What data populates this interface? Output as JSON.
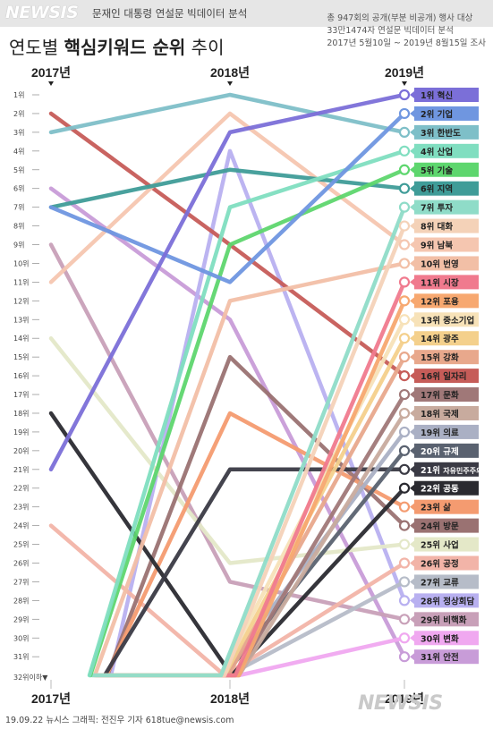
{
  "header": {
    "logo": "NEWSIS",
    "subtitle": "문재인 대통령 연설문 빅데이터 분석"
  },
  "title": {
    "prefix": "연도별 ",
    "bold": "핵심키워드 순위",
    "suffix": " 추이"
  },
  "notes": [
    "총 947회의 공개(부분 비공개) 행사 대상",
    "33만1474자 연설문 빅데이터 분석",
    "2017년 5월10일 ~ 2019년 8월15일 조사"
  ],
  "footer": "19.09.22 뉴시스 그래픽: 전진우 기자 618tue@newsis.com",
  "watermark": "NEWSIS",
  "chart_data": {
    "type": "line",
    "x": [
      "2017년",
      "2018년",
      "2019년"
    ],
    "y_ticks": [
      "1위",
      "2위",
      "3위",
      "4위",
      "5위",
      "6위",
      "7위",
      "8위",
      "9위",
      "10위",
      "11위",
      "12위",
      "13위",
      "14위",
      "15위",
      "16위",
      "17위",
      "18위",
      "19위",
      "20위",
      "21위",
      "22위",
      "23위",
      "24위",
      "25위",
      "26위",
      "27위",
      "28위",
      "29위",
      "30위",
      "31위",
      "32위이하▼"
    ],
    "y_note": "rank 32 = below 32nd (off chart)",
    "series": [
      {
        "name": "혁신",
        "color": "#7b6fd8",
        "ranks": [
          21,
          3,
          1
        ]
      },
      {
        "name": "기업",
        "color": "#6f96e0",
        "ranks": [
          7,
          11,
          2
        ]
      },
      {
        "name": "한반도",
        "color": "#7ebfc8",
        "ranks": [
          3,
          1,
          3
        ]
      },
      {
        "name": "산업",
        "color": "#80dec0",
        "ranks": [
          32,
          7,
          4
        ]
      },
      {
        "name": "기술",
        "color": "#5ed66e",
        "ranks": [
          32,
          9,
          5
        ]
      },
      {
        "name": "지역",
        "color": "#3f9c98",
        "ranks": [
          7,
          5,
          6
        ]
      },
      {
        "name": "투자",
        "color": "#8fdcc8",
        "ranks": [
          32,
          32,
          7
        ]
      },
      {
        "name": "대화",
        "color": "#f4d2b8",
        "ranks": [
          32,
          32,
          8
        ]
      },
      {
        "name": "남북",
        "color": "#f5c6b0",
        "ranks": [
          11,
          2,
          9
        ]
      },
      {
        "name": "번영",
        "color": "#f2bfa6",
        "ranks": [
          32,
          12,
          10
        ]
      },
      {
        "name": "시장",
        "color": "#f07a8e",
        "ranks": [
          32,
          32,
          11
        ]
      },
      {
        "name": "포용",
        "color": "#f7a870",
        "ranks": [
          32,
          32,
          12
        ]
      },
      {
        "name": "중소기업",
        "color": "#f7e2b8",
        "ranks": [
          32,
          32,
          13
        ]
      },
      {
        "name": "광주",
        "color": "#f4d08c",
        "ranks": [
          32,
          32,
          14
        ]
      },
      {
        "name": "강화",
        "color": "#e8a88c",
        "ranks": [
          32,
          32,
          15
        ]
      },
      {
        "name": "일자리",
        "color": "#c65c58",
        "ranks": [
          2,
          9,
          16
        ]
      },
      {
        "name": "문화",
        "color": "#a07878",
        "ranks": [
          32,
          32,
          17
        ]
      },
      {
        "name": "국제",
        "color": "#c8ab9e",
        "ranks": [
          32,
          32,
          18
        ]
      },
      {
        "name": "의료",
        "color": "#aab0c4",
        "ranks": [
          32,
          32,
          19
        ]
      },
      {
        "name": "규제",
        "color": "#5a6270",
        "ranks": [
          32,
          32,
          20
        ]
      },
      {
        "name": "자유민주주의",
        "color": "#3a3a44",
        "ranks": [
          32,
          21,
          21
        ]
      },
      {
        "name": "공동",
        "color": "#2a2a30",
        "ranks": [
          18,
          32,
          22
        ]
      },
      {
        "name": "삶",
        "color": "#f49b70",
        "ranks": [
          32,
          18,
          23
        ]
      },
      {
        "name": "방문",
        "color": "#9a7272",
        "ranks": [
          32,
          15,
          24
        ]
      },
      {
        "name": "사업",
        "color": "#e4e8c8",
        "ranks": [
          14,
          26,
          25
        ]
      },
      {
        "name": "공정",
        "color": "#f2b4a8",
        "ranks": [
          24,
          32,
          26
        ]
      },
      {
        "name": "교류",
        "color": "#b6bcc8",
        "ranks": [
          32,
          32,
          27
        ]
      },
      {
        "name": "정상회담",
        "color": "#b8b0f0",
        "ranks": [
          32,
          4,
          28
        ]
      },
      {
        "name": "비핵화",
        "color": "#c8a0b8",
        "ranks": [
          9,
          27,
          29
        ]
      },
      {
        "name": "변화",
        "color": "#f0a8f0",
        "ranks": [
          32,
          32,
          30
        ]
      },
      {
        "name": "안전",
        "color": "#c89cd8",
        "ranks": [
          6,
          13,
          31
        ]
      }
    ]
  }
}
